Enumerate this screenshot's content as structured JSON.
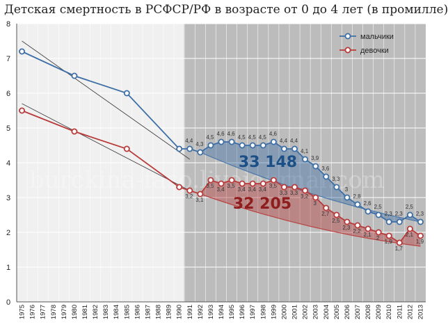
{
  "title": "Детская смертность в РСФСР/РФ в возрасте от 0 до 4 лет (в промилле)",
  "watermark": "burckina-faso.livejournal.com",
  "chart_data": {
    "type": "line",
    "title": "Детская смертность в РСФСР/РФ в возрасте от 0 до 4 лет (в промилле)",
    "xlabel": "",
    "ylabel": "",
    "ylim": [
      0,
      8
    ],
    "yticks": [
      0,
      1,
      2,
      3,
      4,
      5,
      6,
      7,
      8
    ],
    "x": [
      "1975",
      "1976",
      "1977",
      "1978",
      "1979",
      "1980",
      "1981",
      "1982",
      "1983",
      "1984",
      "1985",
      "1986",
      "1987",
      "1988",
      "1989",
      "1990",
      "1991",
      "1992",
      "1993",
      "1994",
      "1995",
      "1996",
      "1997",
      "1998",
      "1999",
      "2000",
      "2001",
      "2002",
      "2003",
      "2004",
      "2005",
      "2006",
      "2007",
      "2008",
      "2009",
      "2010",
      "2011",
      "2012",
      "2013"
    ],
    "grid": true,
    "legend": "top-right",
    "shaded_region": {
      "from": "1991",
      "to": "2013"
    },
    "series": [
      {
        "name": "мальчики",
        "color": "#3d6fa6",
        "points": [
          {
            "x": "1975",
            "y": 7.2
          },
          {
            "x": "1980",
            "y": 6.5
          },
          {
            "x": "1985",
            "y": 6.0
          },
          {
            "x": "1990",
            "y": 4.4
          },
          {
            "x": "1991",
            "y": 4.4,
            "label": "4,4"
          },
          {
            "x": "1992",
            "y": 4.3,
            "label": "4,3"
          },
          {
            "x": "1993",
            "y": 4.5,
            "label": "4,5"
          },
          {
            "x": "1994",
            "y": 4.6,
            "label": "4,6"
          },
          {
            "x": "1995",
            "y": 4.6,
            "label": "4,6"
          },
          {
            "x": "1996",
            "y": 4.5,
            "label": "4,5"
          },
          {
            "x": "1997",
            "y": 4.5,
            "label": "4,5"
          },
          {
            "x": "1998",
            "y": 4.5,
            "label": "4,5"
          },
          {
            "x": "1999",
            "y": 4.6,
            "label": "4,6"
          },
          {
            "x": "2000",
            "y": 4.4,
            "label": "4,4"
          },
          {
            "x": "2001",
            "y": 4.4,
            "label": "4,4"
          },
          {
            "x": "2002",
            "y": 4.1,
            "label": "4,1"
          },
          {
            "x": "2003",
            "y": 3.9,
            "label": "3,9"
          },
          {
            "x": "2004",
            "y": 3.6,
            "label": "3,6"
          },
          {
            "x": "2005",
            "y": 3.3,
            "label": "3,3"
          },
          {
            "x": "2006",
            "y": 3.0,
            "label": "3"
          },
          {
            "x": "2007",
            "y": 2.8,
            "label": "2,8"
          },
          {
            "x": "2008",
            "y": 2.6,
            "label": "2,6"
          },
          {
            "x": "2009",
            "y": 2.5,
            "label": "2,5"
          },
          {
            "x": "2010",
            "y": 2.3,
            "label": "2,3"
          },
          {
            "x": "2011",
            "y": 2.3,
            "label": "2,3"
          },
          {
            "x": "2012",
            "y": 2.5,
            "label": "2,5"
          },
          {
            "x": "2013",
            "y": 2.3,
            "label": "2,3"
          }
        ],
        "trend": {
          "x": [
            "1975",
            "1991"
          ],
          "y": [
            7.5,
            4.1
          ]
        },
        "excess_baseline": {
          "x": [
            "1992",
            "2013"
          ],
          "y": [
            4.3,
            2.3
          ]
        },
        "excess_label": "33 148"
      },
      {
        "name": "девочки",
        "color": "#b83a3a",
        "points": [
          {
            "x": "1975",
            "y": 5.5
          },
          {
            "x": "1980",
            "y": 4.9
          },
          {
            "x": "1985",
            "y": 4.4
          },
          {
            "x": "1990",
            "y": 3.3
          },
          {
            "x": "1991",
            "y": 3.2,
            "label": "3,2"
          },
          {
            "x": "1992",
            "y": 3.1,
            "label": "3,1"
          },
          {
            "x": "1993",
            "y": 3.5,
            "label": "3,5"
          },
          {
            "x": "1994",
            "y": 3.4,
            "label": "3,4"
          },
          {
            "x": "1995",
            "y": 3.5,
            "label": "3,5"
          },
          {
            "x": "1996",
            "y": 3.4,
            "label": "3,4"
          },
          {
            "x": "1997",
            "y": 3.4,
            "label": "3,4"
          },
          {
            "x": "1998",
            "y": 3.4,
            "label": "3,4"
          },
          {
            "x": "1999",
            "y": 3.5,
            "label": "3,5"
          },
          {
            "x": "2000",
            "y": 3.3,
            "label": "3,3"
          },
          {
            "x": "2001",
            "y": 3.3,
            "label": "3,3"
          },
          {
            "x": "2002",
            "y": 3.2,
            "label": "3,2"
          },
          {
            "x": "2003",
            "y": 3.0,
            "label": "3"
          },
          {
            "x": "2004",
            "y": 2.7,
            "label": "2,7"
          },
          {
            "x": "2005",
            "y": 2.5,
            "label": "2,5"
          },
          {
            "x": "2006",
            "y": 2.3,
            "label": "2,3"
          },
          {
            "x": "2007",
            "y": 2.2,
            "label": "2,2"
          },
          {
            "x": "2008",
            "y": 2.1,
            "label": "2,1"
          },
          {
            "x": "2009",
            "y": 2.0,
            "label": "2"
          },
          {
            "x": "2010",
            "y": 1.9,
            "label": "1,9"
          },
          {
            "x": "2011",
            "y": 1.7,
            "label": "1,7"
          },
          {
            "x": "2012",
            "y": 2.1,
            "label": "2,1"
          },
          {
            "x": "2013",
            "y": 1.9,
            "label": "1,9"
          }
        ],
        "trend": {
          "x": [
            "1975",
            "1991"
          ],
          "y": [
            5.7,
            3.2
          ]
        },
        "excess_baseline": {
          "x": [
            "1992",
            "2013"
          ],
          "y": [
            3.1,
            1.6
          ]
        },
        "excess_label": "32 205"
      }
    ]
  }
}
